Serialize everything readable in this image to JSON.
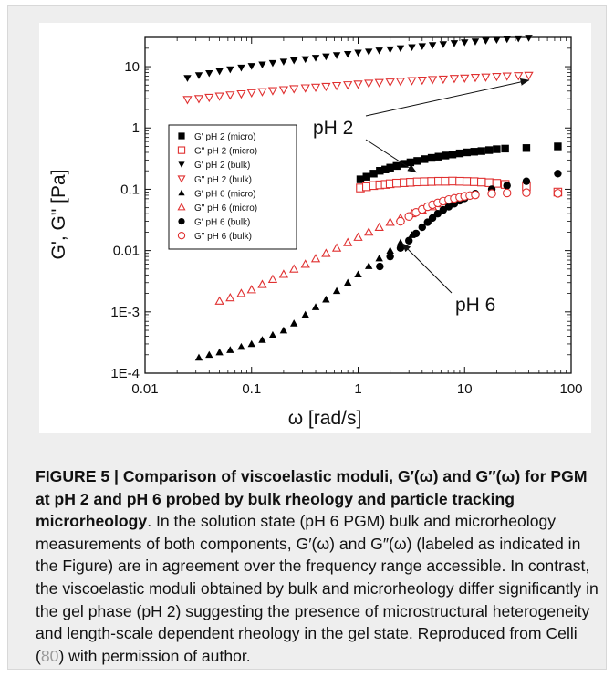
{
  "chart_data": {
    "type": "scatter",
    "xscale": "log",
    "yscale": "log",
    "xlim": [
      0.01,
      100
    ],
    "ylim": [
      0.0001,
      30
    ],
    "xlabel": "ω [rad/s]",
    "ylabel": "G', G\" [Pa]",
    "x_tick_labels": [
      "0.01",
      "0.1",
      "1",
      "10",
      "100"
    ],
    "y_tick_labels": [
      "1E-4",
      "1E-3",
      "0.01",
      "0.1",
      "1",
      "10"
    ],
    "legend_position": "center-left",
    "series": [
      {
        "name": "G' pH 2 (micro)",
        "marker": "square-filled",
        "color": "#000000",
        "points": [
          [
            1.05,
            0.145
          ],
          [
            1.2,
            0.16
          ],
          [
            1.4,
            0.18
          ],
          [
            1.6,
            0.2
          ],
          [
            1.8,
            0.21
          ],
          [
            2.0,
            0.225
          ],
          [
            2.3,
            0.24
          ],
          [
            2.7,
            0.26
          ],
          [
            3.1,
            0.275
          ],
          [
            3.6,
            0.29
          ],
          [
            4.2,
            0.31
          ],
          [
            4.9,
            0.325
          ],
          [
            5.7,
            0.34
          ],
          [
            6.6,
            0.355
          ],
          [
            7.7,
            0.37
          ],
          [
            9.0,
            0.385
          ],
          [
            10.5,
            0.4
          ],
          [
            12.3,
            0.41
          ],
          [
            14.4,
            0.42
          ],
          [
            17,
            0.435
          ],
          [
            20,
            0.45
          ],
          [
            24,
            0.46
          ],
          [
            38,
            0.47
          ],
          [
            75,
            0.5
          ]
        ]
      },
      {
        "name": "G\" pH 2 (micro)",
        "marker": "square-open",
        "color": "#e03030",
        "points": [
          [
            1.05,
            0.105
          ],
          [
            1.2,
            0.11
          ],
          [
            1.4,
            0.115
          ],
          [
            1.6,
            0.118
          ],
          [
            1.8,
            0.12
          ],
          [
            2.0,
            0.123
          ],
          [
            2.3,
            0.126
          ],
          [
            2.7,
            0.128
          ],
          [
            3.1,
            0.13
          ],
          [
            3.6,
            0.132
          ],
          [
            4.2,
            0.133
          ],
          [
            4.9,
            0.134
          ],
          [
            5.7,
            0.135
          ],
          [
            6.6,
            0.135
          ],
          [
            7.7,
            0.136
          ],
          [
            9.0,
            0.135
          ],
          [
            10.5,
            0.134
          ],
          [
            12.3,
            0.133
          ],
          [
            14.4,
            0.131
          ],
          [
            17,
            0.128
          ],
          [
            20,
            0.125
          ],
          [
            24,
            0.12
          ],
          [
            38,
            0.11
          ],
          [
            75,
            0.09
          ]
        ]
      },
      {
        "name": "G' pH 2 (bulk)",
        "marker": "triangle-down-filled",
        "color": "#000000",
        "points": [
          [
            0.025,
            6.5
          ],
          [
            0.032,
            7.2
          ],
          [
            0.04,
            7.8
          ],
          [
            0.05,
            8.4
          ],
          [
            0.063,
            9.0
          ],
          [
            0.08,
            9.6
          ],
          [
            0.1,
            10.2
          ],
          [
            0.126,
            10.8
          ],
          [
            0.158,
            11.4
          ],
          [
            0.2,
            12.0
          ],
          [
            0.25,
            12.6
          ],
          [
            0.32,
            13.2
          ],
          [
            0.4,
            13.9
          ],
          [
            0.5,
            14.6
          ],
          [
            0.63,
            15.3
          ],
          [
            0.8,
            16.0
          ],
          [
            1.0,
            16.8
          ],
          [
            1.26,
            17.5
          ],
          [
            1.58,
            18.3
          ],
          [
            2.0,
            19.1
          ],
          [
            2.5,
            19.9
          ],
          [
            3.2,
            20.7
          ],
          [
            4.0,
            21.5
          ],
          [
            5.0,
            22.3
          ],
          [
            6.3,
            23.1
          ],
          [
            8.0,
            24.0
          ],
          [
            10,
            24.8
          ],
          [
            12.6,
            25.6
          ],
          [
            15.8,
            26.4
          ],
          [
            20,
            27.2
          ],
          [
            25,
            28.0
          ],
          [
            32,
            28.8
          ],
          [
            40,
            29.5
          ]
        ]
      },
      {
        "name": "G\" pH 2 (bulk)",
        "marker": "triangle-down-open",
        "color": "#e03030",
        "points": [
          [
            0.025,
            2.9
          ],
          [
            0.032,
            3.0
          ],
          [
            0.04,
            3.15
          ],
          [
            0.05,
            3.3
          ],
          [
            0.063,
            3.45
          ],
          [
            0.08,
            3.6
          ],
          [
            0.1,
            3.75
          ],
          [
            0.126,
            3.9
          ],
          [
            0.158,
            4.05
          ],
          [
            0.2,
            4.2
          ],
          [
            0.25,
            4.35
          ],
          [
            0.32,
            4.5
          ],
          [
            0.4,
            4.6
          ],
          [
            0.5,
            4.75
          ],
          [
            0.63,
            4.9
          ],
          [
            0.8,
            5.05
          ],
          [
            1.0,
            5.2
          ],
          [
            1.26,
            5.35
          ],
          [
            1.58,
            5.5
          ],
          [
            2.0,
            5.6
          ],
          [
            2.5,
            5.75
          ],
          [
            3.2,
            5.9
          ],
          [
            4.0,
            6.0
          ],
          [
            5.0,
            6.15
          ],
          [
            6.3,
            6.25
          ],
          [
            8.0,
            6.4
          ],
          [
            10,
            6.5
          ],
          [
            12.6,
            6.65
          ],
          [
            15.8,
            6.75
          ],
          [
            20,
            6.9
          ],
          [
            25,
            7.0
          ],
          [
            32,
            7.1
          ],
          [
            40,
            7.2
          ]
        ]
      },
      {
        "name": "G' pH 6 (micro)",
        "marker": "triangle-up-filled",
        "color": "#000000",
        "points": [
          [
            0.032,
            0.00018
          ],
          [
            0.04,
            0.0002
          ],
          [
            0.05,
            0.00022
          ],
          [
            0.063,
            0.00024
          ],
          [
            0.08,
            0.00027
          ],
          [
            0.1,
            0.0003
          ],
          [
            0.126,
            0.00035
          ],
          [
            0.158,
            0.00042
          ],
          [
            0.2,
            0.0005
          ],
          [
            0.25,
            0.00065
          ],
          [
            0.32,
            0.0009
          ],
          [
            0.4,
            0.0012
          ],
          [
            0.5,
            0.0016
          ],
          [
            0.63,
            0.0022
          ],
          [
            0.8,
            0.003
          ],
          [
            1.0,
            0.0041
          ],
          [
            1.26,
            0.0056
          ],
          [
            1.58,
            0.0075
          ],
          [
            2.0,
            0.01
          ],
          [
            2.5,
            0.0135
          ],
          [
            3.2,
            0.018
          ]
        ]
      },
      {
        "name": "G\" pH 6 (micro)",
        "marker": "triangle-up-open",
        "color": "#e03030",
        "points": [
          [
            0.05,
            0.0015
          ],
          [
            0.063,
            0.0017
          ],
          [
            0.08,
            0.002
          ],
          [
            0.1,
            0.0023
          ],
          [
            0.126,
            0.0028
          ],
          [
            0.158,
            0.0034
          ],
          [
            0.2,
            0.0041
          ],
          [
            0.25,
            0.005
          ],
          [
            0.32,
            0.006
          ],
          [
            0.4,
            0.0074
          ],
          [
            0.5,
            0.009
          ],
          [
            0.63,
            0.011
          ],
          [
            0.8,
            0.0135
          ],
          [
            1.0,
            0.0165
          ],
          [
            1.26,
            0.02
          ],
          [
            1.58,
            0.024
          ],
          [
            2.0,
            0.029
          ],
          [
            2.5,
            0.034
          ],
          [
            3.2,
            0.04
          ],
          [
            4.0,
            0.046
          ],
          [
            5.0,
            0.052
          ],
          [
            6.3,
            0.058
          ]
        ]
      },
      {
        "name": "G' pH 6 (bulk)",
        "marker": "circle-filled",
        "color": "#000000",
        "points": [
          [
            1.6,
            0.0055
          ],
          [
            2.0,
            0.008
          ],
          [
            2.5,
            0.011
          ],
          [
            3.0,
            0.0145
          ],
          [
            3.5,
            0.019
          ],
          [
            4.0,
            0.024
          ],
          [
            4.5,
            0.029
          ],
          [
            5.0,
            0.034
          ],
          [
            5.6,
            0.04
          ],
          [
            6.3,
            0.046
          ],
          [
            7.1,
            0.052
          ],
          [
            8.0,
            0.058
          ],
          [
            9.0,
            0.065
          ],
          [
            10,
            0.071
          ],
          [
            11.2,
            0.078
          ],
          [
            12.6,
            0.085
          ],
          [
            18,
            0.1
          ],
          [
            25,
            0.115
          ],
          [
            38,
            0.135
          ],
          [
            75,
            0.18
          ]
        ]
      },
      {
        "name": "G\" pH 6 (bulk)",
        "marker": "circle-open",
        "color": "#e03030",
        "points": [
          [
            2.5,
            0.03
          ],
          [
            3.0,
            0.036
          ],
          [
            3.5,
            0.042
          ],
          [
            4.0,
            0.047
          ],
          [
            4.5,
            0.052
          ],
          [
            5.0,
            0.056
          ],
          [
            5.6,
            0.06
          ],
          [
            6.3,
            0.064
          ],
          [
            7.1,
            0.068
          ],
          [
            8.0,
            0.071
          ],
          [
            9.0,
            0.074
          ],
          [
            10,
            0.077
          ],
          [
            11.2,
            0.079
          ],
          [
            12.6,
            0.081
          ],
          [
            18,
            0.085
          ],
          [
            25,
            0.087
          ],
          [
            38,
            0.088
          ],
          [
            75,
            0.086
          ]
        ]
      }
    ],
    "annotations": [
      {
        "text": "pH 2"
      },
      {
        "text": "pH 6"
      }
    ]
  },
  "caption": {
    "bold": "FIGURE 5 | Comparison of viscoelastic moduli, G′(ω) and G″(ω) for PGM at pH 2 and pH 6 probed by bulk rheology and particle tracking microrheology",
    "text_before_cite": ". In the solution state (pH 6 PGM) bulk and microrheology measurements of both components, G′(ω) and G″(ω) (labeled as indicated in the Figure) are in agreement over the frequency range accessible. In contrast, the viscoelastic moduli obtained by bulk and microrheology differ significantly in the gel phase (pH 2) suggesting the presence of microstructural heterogeneity and length-scale dependent rheology in the gel state. Reproduced from Celli (",
    "cite": "80",
    "text_after_cite": ") with permission of author."
  }
}
